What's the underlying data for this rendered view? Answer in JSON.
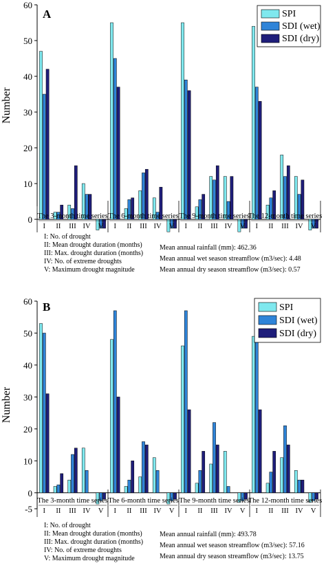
{
  "chart_data": [
    {
      "type": "bar",
      "panel_label": "A",
      "ylabel": "Number",
      "ylim": [
        -5,
        60
      ],
      "yticks": [
        0,
        10,
        20,
        30,
        40,
        50,
        60
      ],
      "grid": false,
      "legend_position": "top-right",
      "groups": [
        "The 3-month time series",
        "The 6-month time series",
        "The 9-month time series",
        "The 12-month time series"
      ],
      "categories": [
        "I",
        "II",
        "III",
        "IV",
        "V"
      ],
      "series": [
        {
          "name": "SPI",
          "color": "#7fe8ee",
          "values": [
            [
              47,
              2,
              4,
              10,
              -3
            ],
            [
              55,
              3,
              8,
              6,
              -3.5
            ],
            [
              55,
              3.5,
              12,
              12,
              -3.5
            ],
            [
              54,
              4,
              18,
              12,
              -3
            ]
          ]
        },
        {
          "name": "SDI (wet)",
          "color": "#2f84d8",
          "values": [
            [
              35,
              2,
              3,
              7,
              -2.5
            ],
            [
              45,
              5.5,
              13,
              2,
              -2.5
            ],
            [
              39,
              5.5,
              11,
              5,
              -2.5
            ],
            [
              37,
              6,
              12,
              7,
              -2.5
            ]
          ]
        },
        {
          "name": "SDI (dry)",
          "color": "#1f1e7a",
          "values": [
            [
              42,
              4,
              15,
              7,
              -2.5
            ],
            [
              37,
              6,
              14,
              9,
              -2.5
            ],
            [
              36,
              7,
              15,
              12,
              -2.5
            ],
            [
              33,
              8,
              15,
              11,
              -2.5
            ]
          ]
        }
      ],
      "legend_notes": [
        "I: No. of drought",
        "II: Mean drought duration (months)",
        "III: Max. drought duration (months)",
        "IV: No. of extreme droughts",
        "V: Maximum drought magnitude"
      ],
      "stats": [
        "Mean annual rainfall (mm): 462.36",
        "Mean annual wet season streamflow (m3/sec): 4.48",
        "Mean annual dry season streamflow (m3/sec): 0.57"
      ]
    },
    {
      "type": "bar",
      "panel_label": "B",
      "ylabel": "Number",
      "ylim": [
        -5,
        60
      ],
      "yticks": [
        -5,
        0,
        10,
        20,
        30,
        40,
        50,
        60
      ],
      "grid": false,
      "legend_position": "top-right",
      "groups": [
        "The 3-month time series",
        "The 6-month time series",
        "The 9-month time series",
        "The 12-month time series"
      ],
      "categories": [
        "I",
        "II",
        "III",
        "IV",
        "V"
      ],
      "series": [
        {
          "name": "SPI",
          "color": "#7fe8ee",
          "values": [
            [
              53,
              2,
              4,
              14,
              -3.5
            ],
            [
              48,
              2,
              5,
              11,
              -3.5
            ],
            [
              46,
              3,
              9,
              13,
              -3
            ],
            [
              49,
              3,
              11,
              7,
              -3
            ]
          ]
        },
        {
          "name": "SDI (wet)",
          "color": "#2f84d8",
          "values": [
            [
              50,
              2.5,
              12,
              7,
              -2.5
            ],
            [
              57,
              4,
              16,
              7,
              -2.5
            ],
            [
              57,
              7,
              22,
              2,
              -2.5
            ],
            [
              53,
              6.5,
              21,
              4,
              -2.5
            ]
          ]
        },
        {
          "name": "SDI (dry)",
          "color": "#1f1e7a",
          "values": [
            [
              31,
              6,
              14,
              0,
              -2
            ],
            [
              30,
              10,
              15,
              0,
              -2
            ],
            [
              26,
              13,
              15,
              0,
              -2
            ],
            [
              26,
              13,
              15,
              4,
              -2
            ]
          ]
        }
      ],
      "legend_notes": [
        "I: No. of drought",
        "II: Mean drought duration (months)",
        "III: Max. drought duration (months)",
        "IV: No. of extreme droughts",
        "V: Maximum drought magnitude"
      ],
      "stats": [
        "Mean annual rainfall (mm): 493.78",
        "Mean annual wet season streamflow (m3/sec): 57.16",
        "Mean annual dry season streamflow (m3/sec): 13.75"
      ]
    }
  ]
}
